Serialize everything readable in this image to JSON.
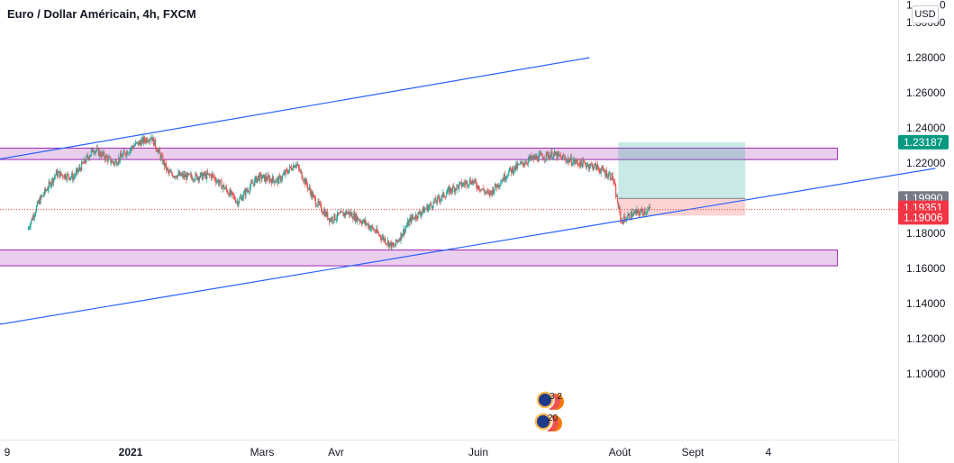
{
  "title": "Euro / Dollar Américain, 4h, FXCM",
  "currency": "USD",
  "chart_data": {
    "type": "candlestick",
    "title": "Euro / Dollar Américain, 4h, FXCM",
    "ylim": [
      1.09,
      1.316
    ],
    "y_ticks": [
      "1.10000",
      "1.12000",
      "1.14000",
      "1.16000",
      "1.18000",
      "1.20000",
      "1.22000",
      "1.24000",
      "1.26000",
      "1.28000",
      "1.30000"
    ],
    "y_tick_values": [
      1.1,
      1.12,
      1.14,
      1.16,
      1.18,
      1.2,
      1.22,
      1.24,
      1.26,
      1.28,
      1.3
    ],
    "top_tick_partial": "1",
    "top_tick_partial_tail": "0",
    "x_ticks": [
      "9",
      "2021",
      "Mars",
      "Avr",
      "Juin",
      "Août",
      "Sept",
      "4"
    ],
    "price_path": [
      [
        "2020-11-24",
        1.182
      ],
      [
        "2020-11-28",
        1.198
      ],
      [
        "2020-12-04",
        1.214
      ],
      [
        "2020-12-10",
        1.212
      ],
      [
        "2020-12-17",
        1.228
      ],
      [
        "2020-12-24",
        1.22
      ],
      [
        "2020-12-31",
        1.23
      ],
      [
        "2021-01-06",
        1.235
      ],
      [
        "2021-01-12",
        1.214
      ],
      [
        "2021-01-19",
        1.212
      ],
      [
        "2021-01-27",
        1.213
      ],
      [
        "2021-02-05",
        1.198
      ],
      [
        "2021-02-12",
        1.212
      ],
      [
        "2021-02-19",
        1.21
      ],
      [
        "2021-02-25",
        1.22
      ],
      [
        "2021-03-04",
        1.198
      ],
      [
        "2021-03-09",
        1.188
      ],
      [
        "2021-03-15",
        1.192
      ],
      [
        "2021-03-22",
        1.185
      ],
      [
        "2021-03-31",
        1.172
      ],
      [
        "2021-04-06",
        1.188
      ],
      [
        "2021-04-13",
        1.196
      ],
      [
        "2021-04-20",
        1.205
      ],
      [
        "2021-04-27",
        1.21
      ],
      [
        "2021-05-03",
        1.202
      ],
      [
        "2021-05-10",
        1.215
      ],
      [
        "2021-05-17",
        1.222
      ],
      [
        "2021-05-25",
        1.225
      ],
      [
        "2021-06-01",
        1.221
      ],
      [
        "2021-06-09",
        1.218
      ],
      [
        "2021-06-15",
        1.212
      ],
      [
        "2021-06-17",
        1.195
      ],
      [
        "2021-06-18",
        1.187
      ],
      [
        "2021-06-22",
        1.191
      ],
      [
        "2021-06-28",
        1.1935
      ]
    ],
    "lines": [
      {
        "name": "upper-trendline",
        "color": "#2962ff",
        "points": [
          [
            "2020-11-01",
            1.2185
          ],
          [
            "2021-06-07",
            1.28
          ]
        ]
      },
      {
        "name": "lower-trendline",
        "color": "#2962ff",
        "points": [
          [
            "2020-11-01",
            1.1245
          ],
          [
            "2021-10-05",
            1.217
          ]
        ]
      }
    ],
    "zones": [
      {
        "name": "resistance-zone",
        "from": [
          "2020-11-01",
          1.2285
        ],
        "to": [
          "2021-09-01",
          1.222
        ],
        "fill": "#e1bee7",
        "stroke": "#9c27b0"
      },
      {
        "name": "support-zone",
        "from": [
          "2020-11-01",
          1.1705
        ],
        "to": [
          "2021-09-01",
          1.1615
        ],
        "fill": "#e1bee7",
        "stroke": "#9c27b0"
      }
    ],
    "position": {
      "start": "2021-06-17",
      "end": "2021-07-31",
      "entry": 1.1999,
      "target": 1.23187,
      "stop": 1.19006,
      "profit_color": "#26a69a",
      "loss_color": "#ef5350"
    },
    "price_labels": [
      {
        "name": "target-price-label",
        "value": 1.23187,
        "text": "1.23187",
        "color": "#089981"
      },
      {
        "name": "entry-price-label",
        "value": 1.1999,
        "text": "1.19990",
        "color": "#787b86"
      },
      {
        "name": "last-price-label",
        "value": 1.19351,
        "text": "1.19351",
        "color": "#f23645"
      },
      {
        "name": "stop-price-label",
        "value": 1.19006,
        "text": "1.19006",
        "color": "#f23645"
      }
    ],
    "events": [
      {
        "name": "events-badge-1",
        "text": "3 2"
      },
      {
        "name": "events-badge-2",
        "text": "20"
      }
    ],
    "colors": {
      "up": "#26a69a",
      "down": "#ef5350"
    }
  }
}
